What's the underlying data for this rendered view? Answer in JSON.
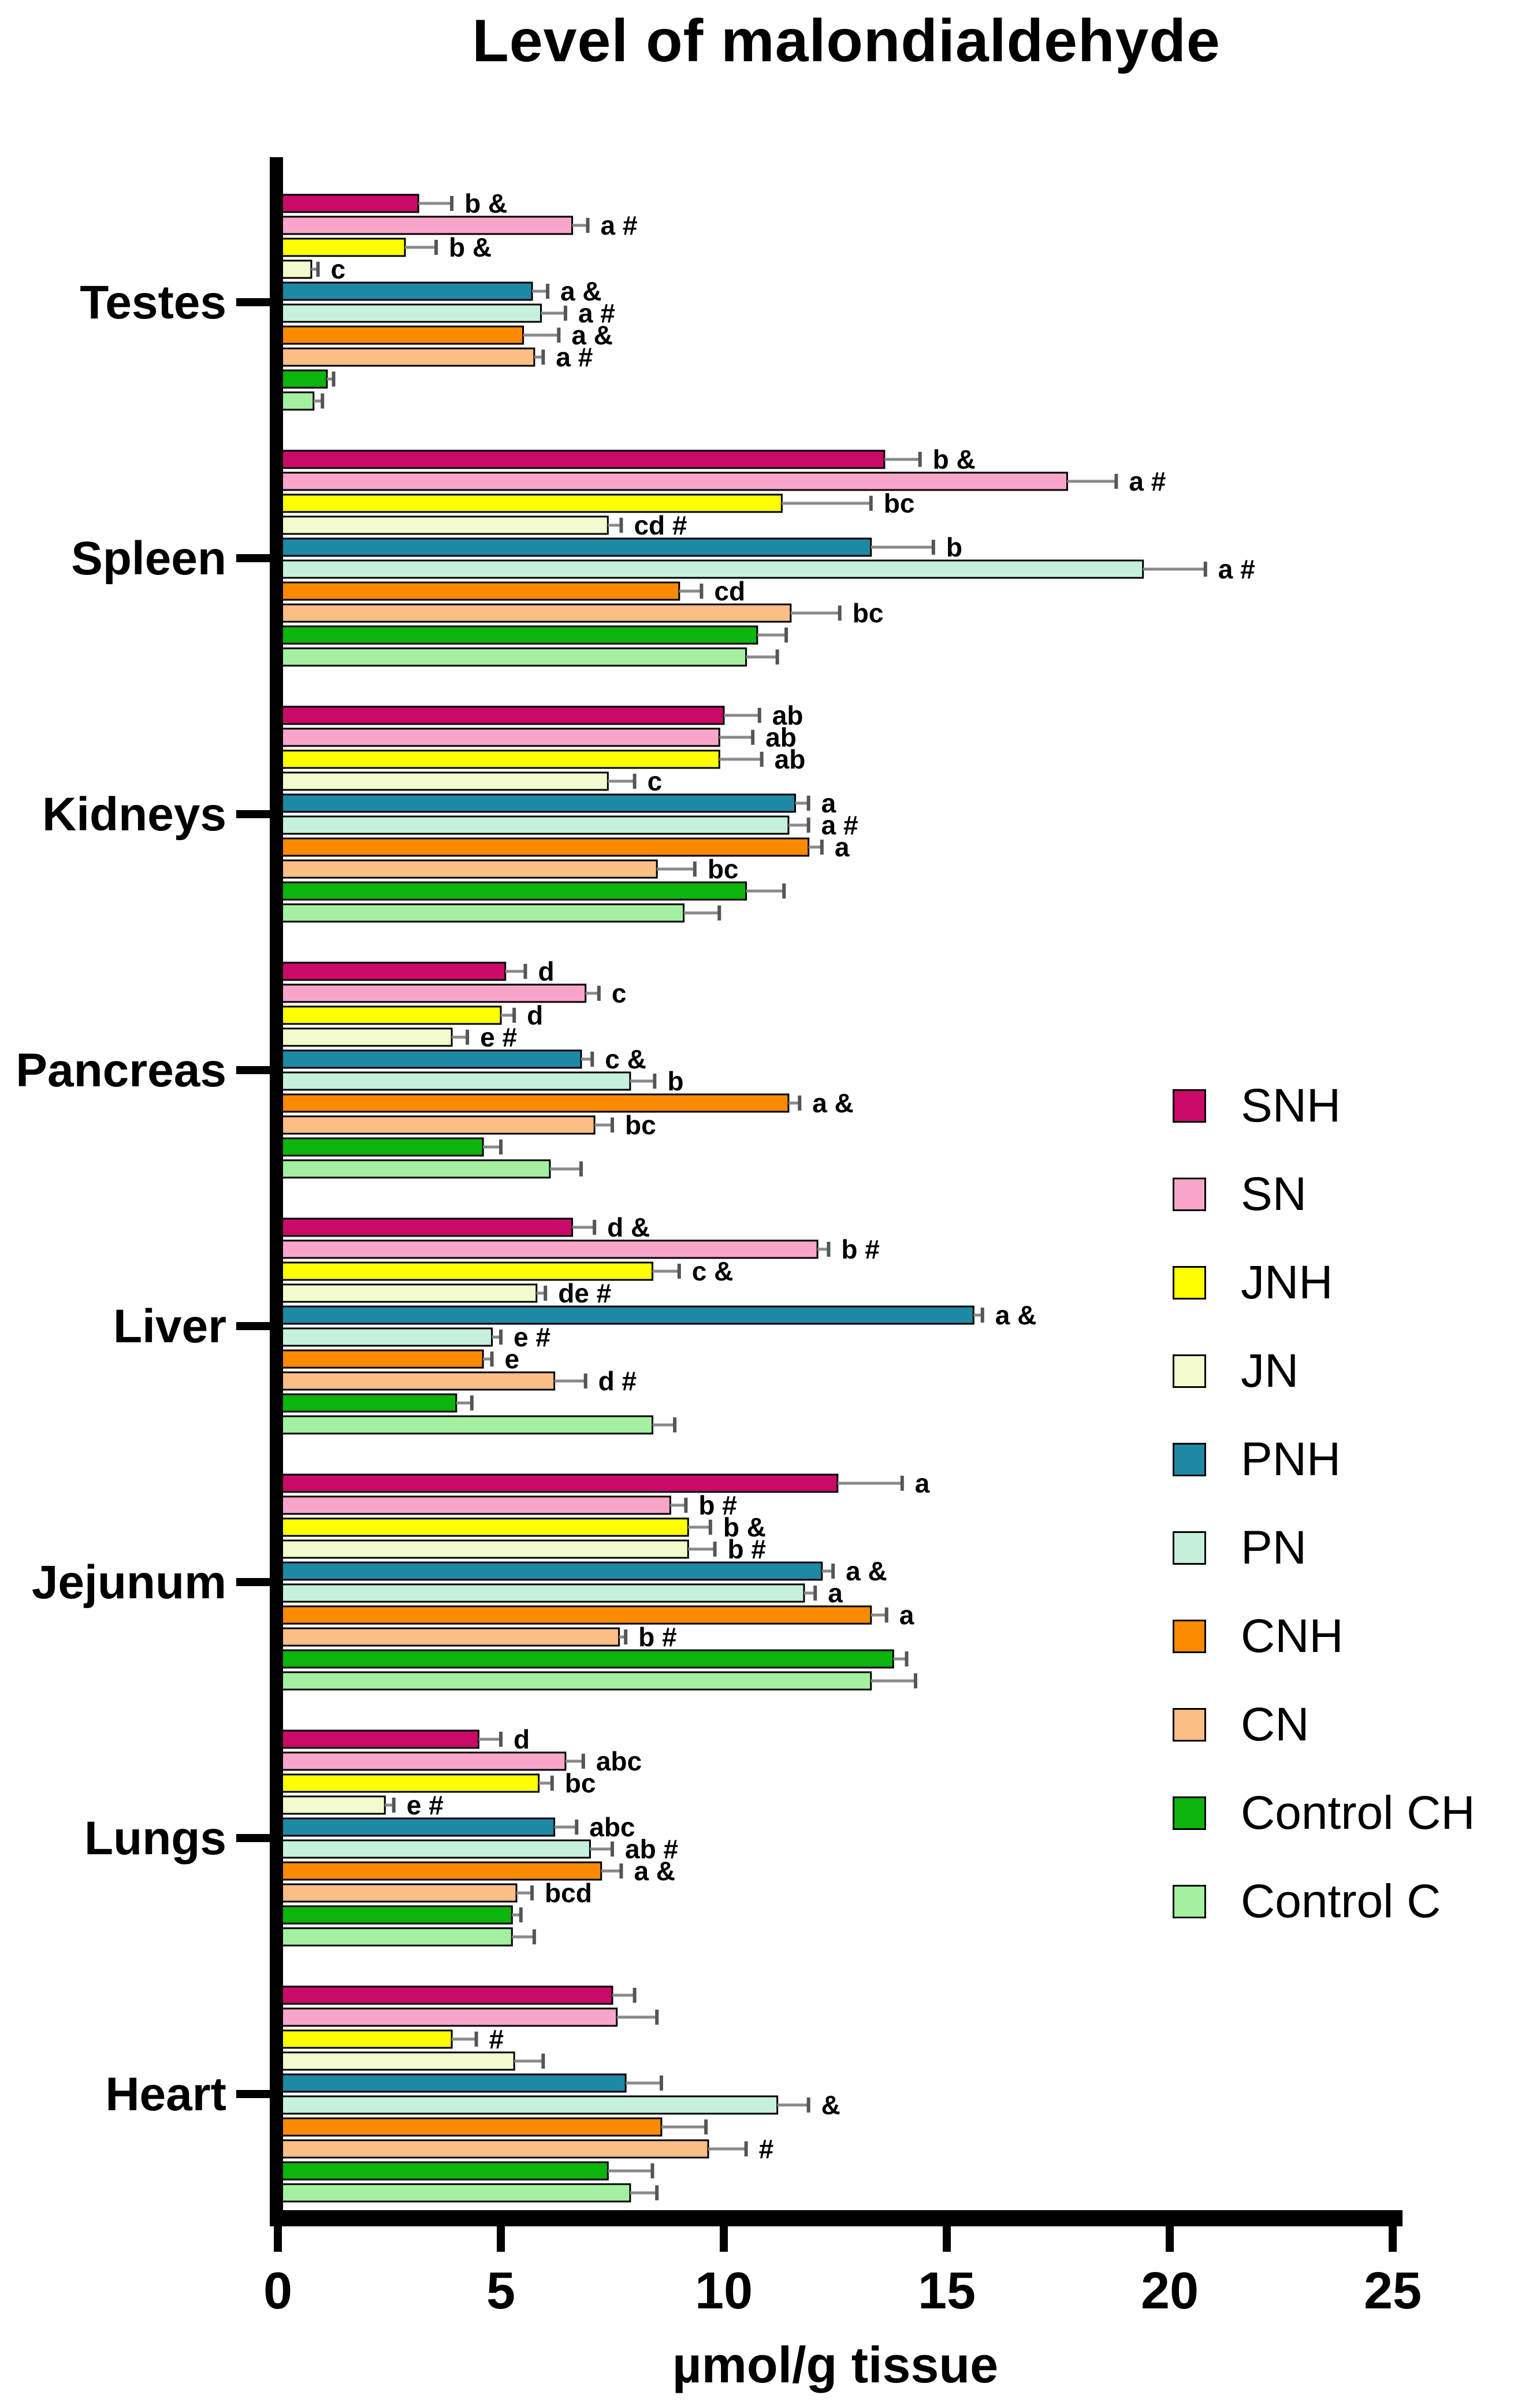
{
  "title": "Level of malondialdehyde",
  "xlabel": "µmol/g tissue",
  "chart_data": {
    "type": "bar",
    "orientation": "horizontal",
    "title": "Level of malondialdehyde",
    "xlabel": "µmol/g tissue",
    "xlim": [
      0,
      25
    ],
    "xticks": [
      0,
      5,
      10,
      15,
      20,
      25
    ],
    "grid": false,
    "legend_position": "right",
    "error_bars": true,
    "categories": [
      "Testes",
      "Spleen",
      "Kidneys",
      "Pancreas",
      "Liver",
      "Jejunum",
      "Lungs",
      "Heart"
    ],
    "series": [
      {
        "name": "SNH",
        "color": "#C90A68",
        "values": [
          3.15,
          13.6,
          10.0,
          5.1,
          6.6,
          12.55,
          4.5,
          7.5
        ],
        "errors": [
          0.75,
          0.8,
          0.8,
          0.45,
          0.5,
          1.45,
          0.5,
          0.5
        ],
        "annotations": [
          "b &",
          "b &",
          "ab",
          "d",
          "d &",
          "a",
          "d",
          ""
        ]
      },
      {
        "name": "SN",
        "color": "#F9A5C9",
        "values": [
          6.6,
          17.7,
          9.9,
          6.9,
          12.1,
          8.8,
          6.45,
          7.6
        ],
        "errors": [
          0.35,
          1.1,
          0.75,
          0.3,
          0.25,
          0.35,
          0.4,
          0.9
        ],
        "annotations": [
          "a #",
          "a #",
          "ab",
          "c",
          "b #",
          "b #",
          "abc",
          ""
        ]
      },
      {
        "name": "JNH",
        "color": "#FFFF00",
        "values": [
          2.85,
          11.3,
          9.9,
          5.0,
          8.4,
          9.2,
          5.85,
          3.9
        ],
        "errors": [
          0.7,
          2.0,
          0.95,
          0.3,
          0.6,
          0.5,
          0.3,
          0.55
        ],
        "annotations": [
          "b &",
          "bc",
          "ab",
          "d",
          "c &",
          "b &",
          "bc",
          "#"
        ]
      },
      {
        "name": "JN",
        "color": "#F3FACD",
        "values": [
          0.75,
          7.4,
          7.4,
          3.9,
          5.8,
          9.2,
          2.4,
          5.3
        ],
        "errors": [
          0.15,
          0.3,
          0.6,
          0.35,
          0.2,
          0.6,
          0.2,
          0.65
        ],
        "annotations": [
          "c",
          "cd #",
          "c",
          "e #",
          "de #",
          "b #",
          "e #",
          ""
        ]
      },
      {
        "name": "PNH",
        "color": "#1D89A5",
        "values": [
          5.7,
          13.3,
          11.6,
          6.8,
          15.6,
          12.2,
          6.2,
          7.8
        ],
        "errors": [
          0.35,
          1.4,
          0.3,
          0.25,
          0.2,
          0.25,
          0.5,
          0.8
        ],
        "annotations": [
          "a &",
          "b",
          "a",
          "c &",
          "a &",
          "a &",
          "abc",
          ""
        ]
      },
      {
        "name": "PN",
        "color": "#C5F0DC",
        "values": [
          5.9,
          19.4,
          11.45,
          7.9,
          4.8,
          11.8,
          7.0,
          11.2
        ],
        "errors": [
          0.55,
          1.4,
          0.45,
          0.55,
          0.2,
          0.25,
          0.5,
          0.7
        ],
        "annotations": [
          "a #",
          "a #",
          "a #",
          "b",
          "e #",
          "a",
          "ab #",
          "&"
        ]
      },
      {
        "name": "CNH",
        "color": "#FB8A00",
        "values": [
          5.5,
          9.0,
          11.9,
          11.45,
          4.6,
          13.3,
          7.25,
          8.6
        ],
        "errors": [
          0.8,
          0.5,
          0.3,
          0.25,
          0.2,
          0.35,
          0.45,
          1.0
        ],
        "annotations": [
          "a &",
          "cd",
          "a",
          "a &",
          "e",
          "a",
          "a &",
          ""
        ]
      },
      {
        "name": "CN",
        "color": "#FBBE85",
        "values": [
          5.75,
          11.5,
          8.5,
          7.1,
          6.2,
          7.65,
          5.35,
          9.65
        ],
        "errors": [
          0.2,
          1.1,
          0.85,
          0.4,
          0.7,
          0.15,
          0.35,
          0.85
        ],
        "annotations": [
          "a #",
          "bc",
          "bc",
          "bc",
          "d #",
          "b #",
          "bcd",
          "#"
        ]
      },
      {
        "name": "Control CH",
        "color": "#0CB50C",
        "values": [
          1.1,
          10.75,
          10.5,
          4.6,
          4.0,
          13.8,
          5.25,
          7.4
        ],
        "errors": [
          0.15,
          0.65,
          0.85,
          0.4,
          0.35,
          0.3,
          0.2,
          1.0
        ],
        "annotations": [
          "",
          "",
          "",
          "",
          "",
          "",
          "",
          ""
        ]
      },
      {
        "name": "Control C",
        "color": "#A3F1A0",
        "values": [
          0.8,
          10.5,
          9.1,
          6.1,
          8.4,
          13.3,
          5.25,
          7.9
        ],
        "errors": [
          0.2,
          0.7,
          0.8,
          0.7,
          0.5,
          1.0,
          0.5,
          0.6
        ],
        "annotations": [
          "",
          "",
          "",
          "",
          "",
          "",
          "",
          ""
        ]
      }
    ]
  }
}
